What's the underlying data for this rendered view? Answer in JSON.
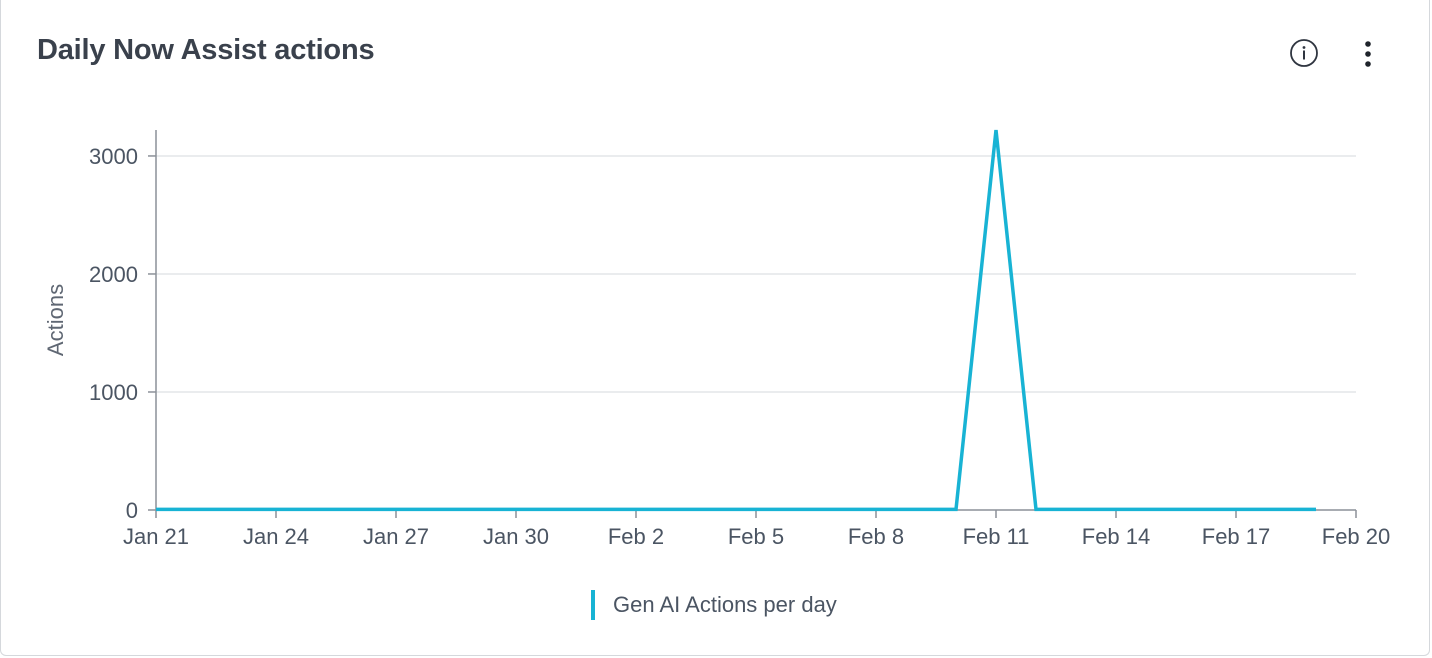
{
  "card": {
    "title": "Daily Now Assist actions"
  },
  "icons": {
    "info": "info-circle-icon",
    "more": "more-vertical-icon"
  },
  "colors": {
    "series": "#18b3d4",
    "grid": "#e3e5e8",
    "axis": "#8c9199",
    "text": "#4b5563"
  },
  "chart_data": {
    "type": "line",
    "title": "Daily Now Assist actions",
    "xlabel": "",
    "ylabel": "Actions",
    "ylim": [
      0,
      3220
    ],
    "xlim": [
      "Jan 21",
      "Feb 20"
    ],
    "grid": true,
    "legend_position": "bottom",
    "x_ticks": [
      "Jan 21",
      "Jan 24",
      "Jan 27",
      "Jan 30",
      "Feb 2",
      "Feb 5",
      "Feb 8",
      "Feb 11",
      "Feb 14",
      "Feb 17",
      "Feb 20"
    ],
    "y_ticks": [
      "0",
      "1000",
      "2000",
      "3000"
    ],
    "y_tick_values": [
      0,
      1000,
      2000,
      3000
    ],
    "series": [
      {
        "name": "Gen AI Actions per day",
        "color": "#18b3d4",
        "x": [
          "Jan 21",
          "Jan 22",
          "Jan 23",
          "Jan 24",
          "Jan 25",
          "Jan 26",
          "Jan 27",
          "Jan 28",
          "Jan 29",
          "Jan 30",
          "Jan 31",
          "Feb 1",
          "Feb 2",
          "Feb 3",
          "Feb 4",
          "Feb 5",
          "Feb 6",
          "Feb 7",
          "Feb 8",
          "Feb 9",
          "Feb 10",
          "Feb 11",
          "Feb 12",
          "Feb 13",
          "Feb 14",
          "Feb 15",
          "Feb 16",
          "Feb 17",
          "Feb 18",
          "Feb 19"
        ],
        "values": [
          5,
          5,
          5,
          5,
          5,
          5,
          5,
          5,
          5,
          5,
          5,
          5,
          5,
          5,
          5,
          5,
          5,
          5,
          5,
          5,
          5,
          3220,
          5,
          5,
          5,
          5,
          5,
          5,
          5,
          5
        ]
      }
    ]
  }
}
